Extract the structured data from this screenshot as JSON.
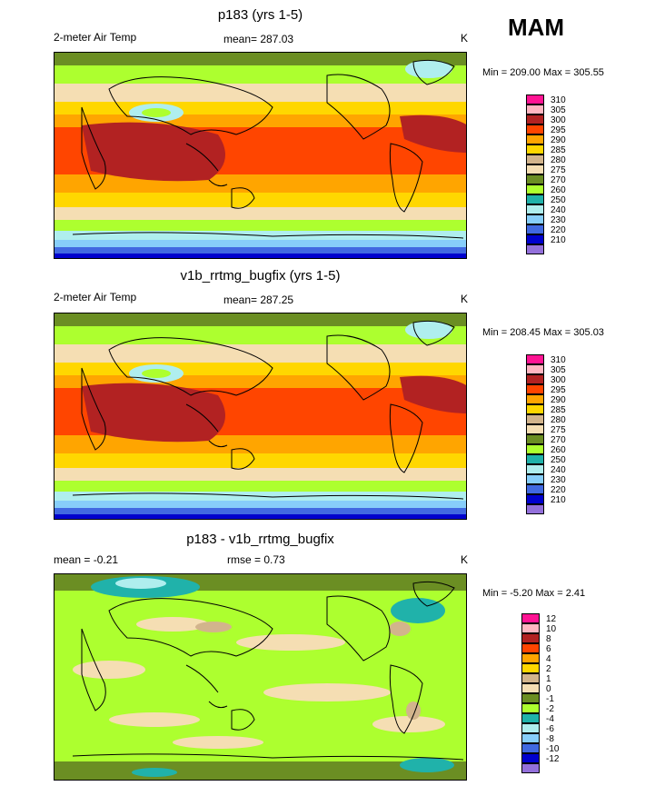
{
  "season": "MAM",
  "panels": [
    {
      "title": "p183 (yrs 1-5)",
      "left_label": "2-meter Air Temp",
      "center_label": "mean= 287.03",
      "units": "K",
      "stats": "Min = 209.00 Max = 305.55",
      "field": "temperature"
    },
    {
      "title": "v1b_rrtmg_bugfix (yrs 1-5)",
      "left_label": "2-meter Air Temp",
      "center_label": "mean= 287.25",
      "units": "K",
      "stats": "Min = 208.45 Max = 305.03",
      "field": "temperature"
    },
    {
      "title": "p183 - v1b_rrtmg_bugfix",
      "left_label": "mean =  -0.21",
      "center_label": "rmse =   0.73",
      "units": "K",
      "stats": "Min =  -5.20 Max =   2.41",
      "field": "difference"
    }
  ],
  "temp_legend": [
    {
      "label": "310",
      "color": "#ff1493"
    },
    {
      "label": "305",
      "color": "#ffb6c1"
    },
    {
      "label": "300",
      "color": "#b22222"
    },
    {
      "label": "295",
      "color": "#ff4500"
    },
    {
      "label": "290",
      "color": "#ffa500"
    },
    {
      "label": "285",
      "color": "#ffd700"
    },
    {
      "label": "280",
      "color": "#d2b48c"
    },
    {
      "label": "275",
      "color": "#f5deb3"
    },
    {
      "label": "270",
      "color": "#6b8e23"
    },
    {
      "label": "260",
      "color": "#adff2f"
    },
    {
      "label": "250",
      "color": "#20b2aa"
    },
    {
      "label": "240",
      "color": "#afeeee"
    },
    {
      "label": "230",
      "color": "#87cefa"
    },
    {
      "label": "220",
      "color": "#4169e1"
    },
    {
      "label": "210",
      "color": "#0000cd"
    },
    {
      "label": "",
      "color": "#9370db"
    }
  ],
  "diff_legend": [
    {
      "label": "12",
      "color": "#ff1493"
    },
    {
      "label": "10",
      "color": "#ffb6c1"
    },
    {
      "label": "8",
      "color": "#b22222"
    },
    {
      "label": "6",
      "color": "#ff4500"
    },
    {
      "label": "4",
      "color": "#ffa500"
    },
    {
      "label": "2",
      "color": "#ffd700"
    },
    {
      "label": "1",
      "color": "#d2b48c"
    },
    {
      "label": "0",
      "color": "#f5deb3"
    },
    {
      "label": "-1",
      "color": "#6b8e23"
    },
    {
      "label": "-2",
      "color": "#adff2f"
    },
    {
      "label": "-4",
      "color": "#20b2aa"
    },
    {
      "label": "-6",
      "color": "#afeeee"
    },
    {
      "label": "-8",
      "color": "#87cefa"
    },
    {
      "label": "-10",
      "color": "#4169e1"
    },
    {
      "label": "-12",
      "color": "#0000cd"
    },
    {
      "label": "",
      "color": "#9370db"
    }
  ]
}
